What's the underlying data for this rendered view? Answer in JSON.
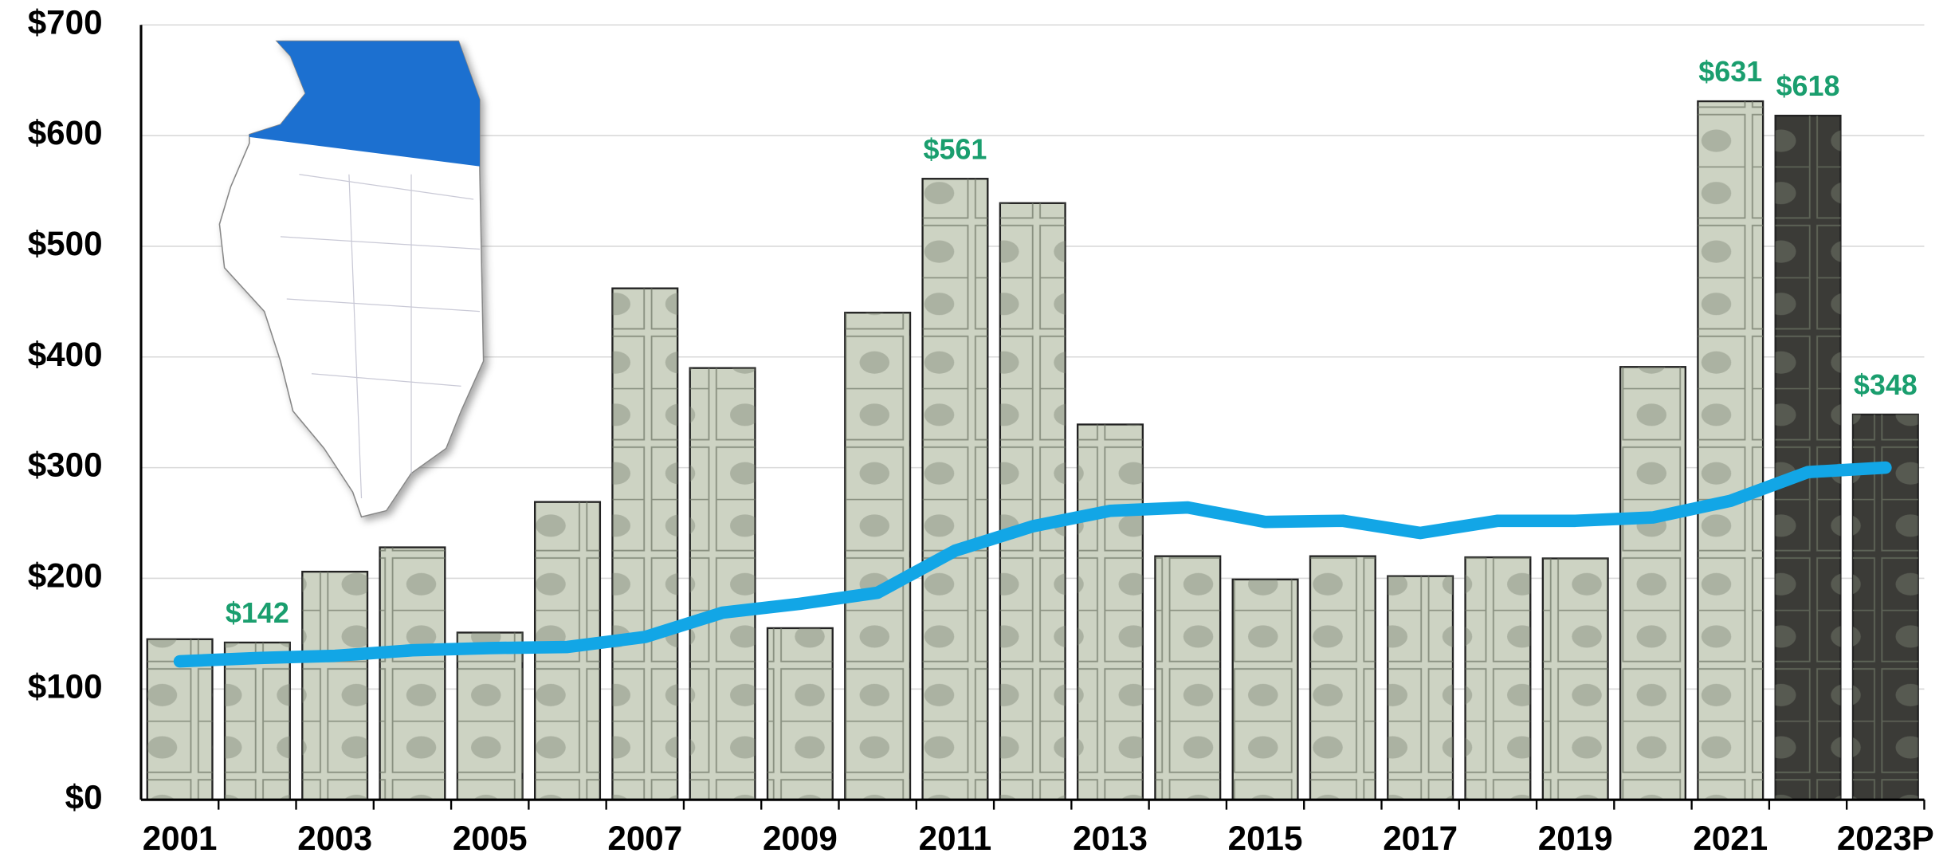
{
  "chart_data": {
    "type": "bar",
    "categories": [
      "2001",
      null,
      "2003",
      null,
      "2005",
      null,
      "2007",
      null,
      "2009",
      null,
      "2011",
      null,
      "2013",
      null,
      "2015",
      null,
      "2017",
      null,
      "2019",
      null,
      "2021",
      null,
      "2023P"
    ],
    "series": [
      {
        "type": "bar",
        "values": [
          145,
          142,
          206,
          228,
          151,
          269,
          462,
          390,
          155,
          440,
          561,
          539,
          339,
          220,
          199,
          220,
          202,
          219,
          218,
          391,
          631,
          618,
          348
        ],
        "value_labels": [
          null,
          "$142",
          null,
          null,
          null,
          null,
          null,
          null,
          null,
          null,
          "$561",
          null,
          null,
          null,
          null,
          null,
          null,
          null,
          null,
          null,
          "$631",
          "$618",
          "$348"
        ],
        "colors": [
          "#cdd3c3",
          "#cdd3c3",
          "#cdd3c3",
          "#cdd3c3",
          "#cdd3c3",
          "#cdd3c3",
          "#cdd3c3",
          "#cdd3c3",
          "#cdd3c3",
          "#cdd3c3",
          "#cdd3c3",
          "#cdd3c3",
          "#cdd3c3",
          "#cdd3c3",
          "#cdd3c3",
          "#cdd3c3",
          "#cdd3c3",
          "#cdd3c3",
          "#cdd3c3",
          "#cdd3c3",
          "#cdd3c3",
          "#3b3b37",
          "#3b3b37"
        ],
        "label_color": "#1a9e6e"
      },
      {
        "type": "line",
        "color": "#12a6e6",
        "values": [
          125,
          128,
          130,
          135,
          137,
          138,
          147,
          169,
          177,
          187,
          225,
          247,
          261,
          264,
          251,
          252,
          241,
          252,
          252,
          255,
          270,
          296,
          300
        ]
      }
    ],
    "ylim": [
      0,
      700
    ],
    "yticks": [
      {
        "value": 0,
        "label": "$0"
      },
      {
        "value": 100,
        "label": "$100"
      },
      {
        "value": 200,
        "label": "$200"
      },
      {
        "value": 300,
        "label": "$300"
      },
      {
        "value": 400,
        "label": "$400"
      },
      {
        "value": 500,
        "label": "$500"
      },
      {
        "value": 600,
        "label": "$600"
      },
      {
        "value": 700,
        "label": "$700"
      }
    ],
    "grid": true
  }
}
